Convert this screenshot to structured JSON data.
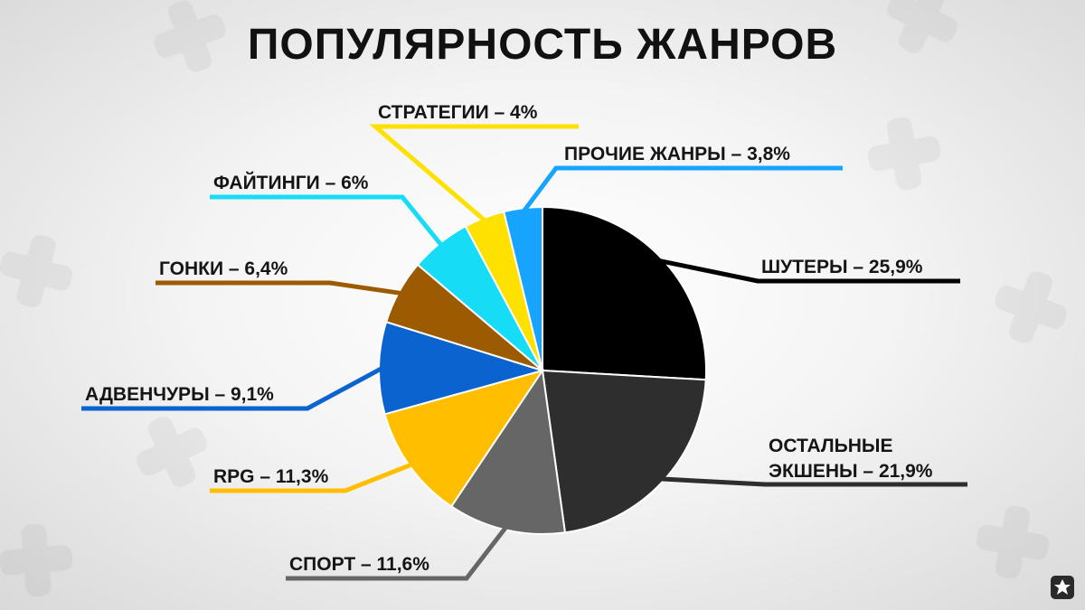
{
  "title": "ПОПУЛЯРНОСТЬ ЖАНРОВ",
  "chart_data": {
    "type": "pie",
    "title": "ПОПУЛЯРНОСТЬ ЖАНРОВ",
    "unit": "%",
    "slices": [
      {
        "label": "ШУТЕРЫ – 25,9%",
        "value": 25.9,
        "color": "#000000"
      },
      {
        "label": "ОСТАЛЬНЫЕ ЭКШЕНЫ – 21,9%",
        "label_lines": [
          "ОСТАЛЬНЫЕ",
          "ЭКШЕНЫ – 21,9%"
        ],
        "value": 21.9,
        "color": "#2e2e2e"
      },
      {
        "label": "СПОРТ – 11,6%",
        "value": 11.6,
        "color": "#666666"
      },
      {
        "label": "RPG – 11,3%",
        "value": 11.3,
        "color": "#ffbf00"
      },
      {
        "label": "АДВЕНЧУРЫ – 9,1%",
        "value": 9.1,
        "color": "#0a63cf"
      },
      {
        "label": "ГОНКИ – 6,4%",
        "value": 6.4,
        "color": "#9c5b00"
      },
      {
        "label": "ФАЙТИНГИ – 6%",
        "value": 6.0,
        "color": "#17dcf6"
      },
      {
        "label": "СТРАТЕГИИ – 4%",
        "value": 4.0,
        "color": "#ffe100"
      },
      {
        "label": "ПРОЧИЕ ЖАНРЫ – 3,8%",
        "value": 3.8,
        "color": "#16a4ff"
      }
    ],
    "start": "12 o'clock",
    "direction": "clockwise",
    "legend": "none"
  }
}
